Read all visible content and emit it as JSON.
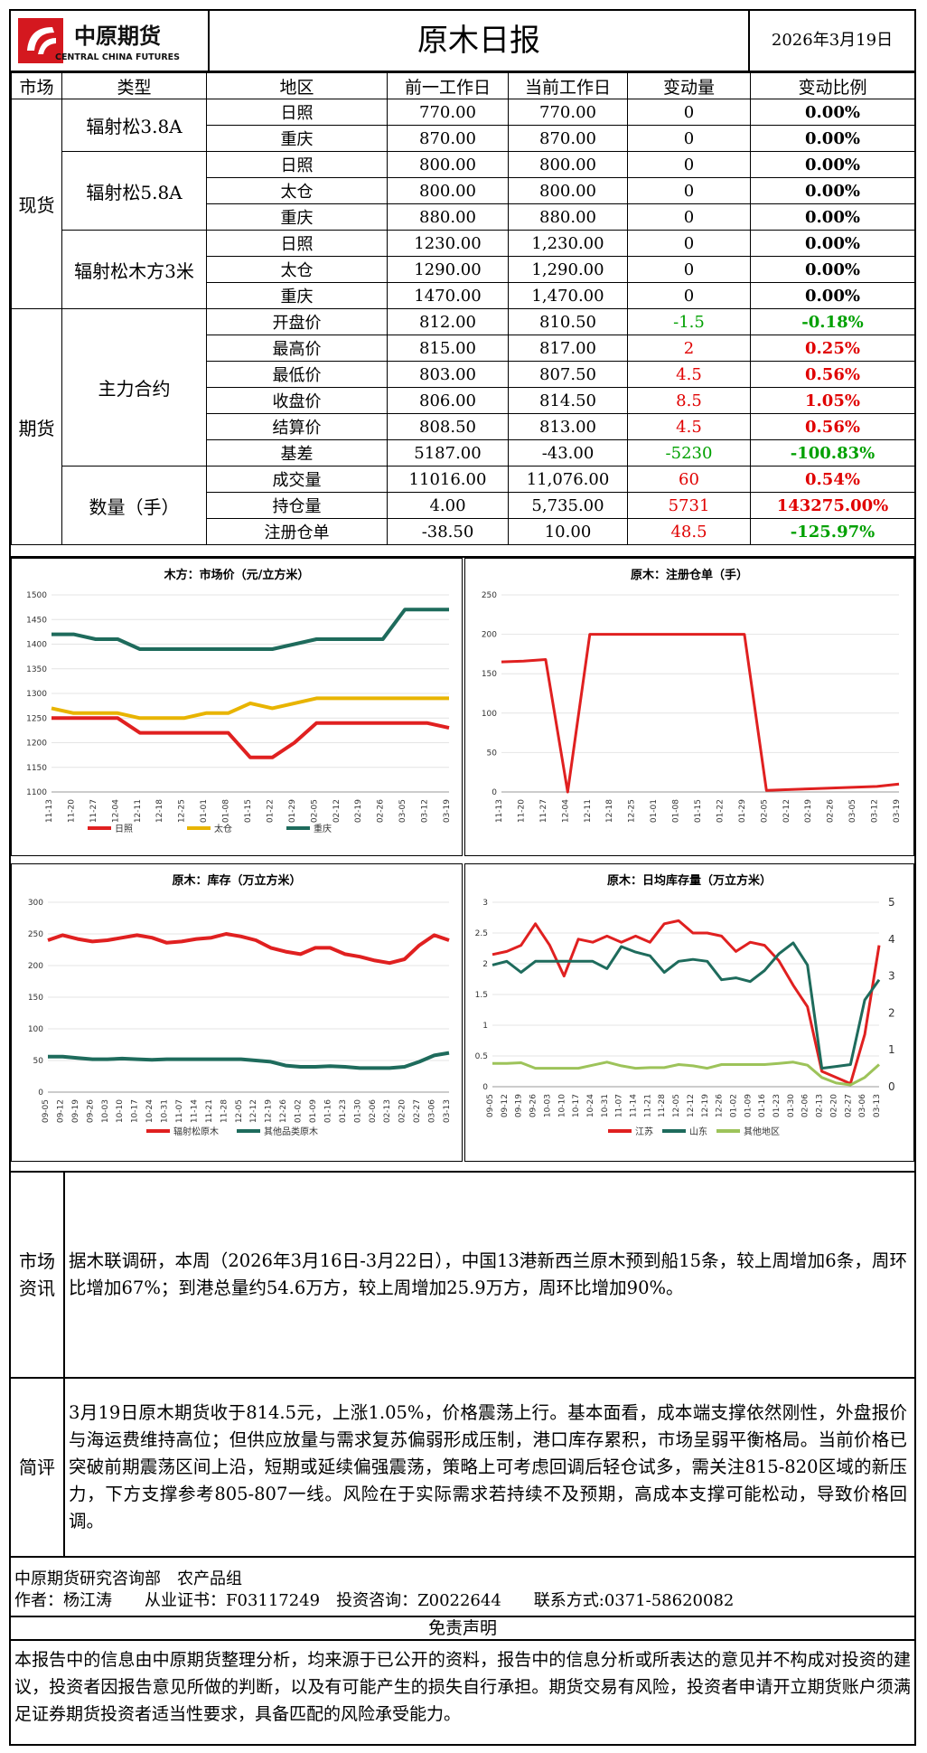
{
  "header": {
    "logo_cn": "中原期货",
    "logo_en": "CENTRAL CHINA FUTURES",
    "title": "原木日报",
    "date": "2026年3月19日",
    "brand_color": "#d4181f"
  },
  "table": {
    "headers": [
      "市场",
      "类型",
      "地区",
      "前一工作日",
      "当前工作日",
      "变动量",
      "变动比例"
    ],
    "spot_label": "现货",
    "futures_label": "期货",
    "groups": {
      "g1": "辐射松3.8A",
      "g2": "辐射松5.8A",
      "g3": "辐射松木方3米",
      "g4": "主力合约",
      "g5": "数量（手）"
    },
    "rows": [
      {
        "region": "日照",
        "prev": "770.00",
        "curr": "770.00",
        "chg": "0",
        "pct": "0.00%",
        "sign": ""
      },
      {
        "region": "重庆",
        "prev": "870.00",
        "curr": "870.00",
        "chg": "0",
        "pct": "0.00%",
        "sign": ""
      },
      {
        "region": "日照",
        "prev": "800.00",
        "curr": "800.00",
        "chg": "0",
        "pct": "0.00%",
        "sign": ""
      },
      {
        "region": "太仓",
        "prev": "800.00",
        "curr": "800.00",
        "chg": "0",
        "pct": "0.00%",
        "sign": ""
      },
      {
        "region": "重庆",
        "prev": "880.00",
        "curr": "880.00",
        "chg": "0",
        "pct": "0.00%",
        "sign": ""
      },
      {
        "region": "日照",
        "prev": "1230.00",
        "curr": "1,230.00",
        "chg": "0",
        "pct": "0.00%",
        "sign": ""
      },
      {
        "region": "太仓",
        "prev": "1290.00",
        "curr": "1,290.00",
        "chg": "0",
        "pct": "0.00%",
        "sign": ""
      },
      {
        "region": "重庆",
        "prev": "1470.00",
        "curr": "1,470.00",
        "chg": "0",
        "pct": "0.00%",
        "sign": ""
      },
      {
        "region": "开盘价",
        "prev": "812.00",
        "curr": "810.50",
        "chg": "-1.5",
        "pct": "-0.18%",
        "sign": "neg"
      },
      {
        "region": "最高价",
        "prev": "815.00",
        "curr": "817.00",
        "chg": "2",
        "pct": "0.25%",
        "sign": "pos"
      },
      {
        "region": "最低价",
        "prev": "803.00",
        "curr": "807.50",
        "chg": "4.5",
        "pct": "0.56%",
        "sign": "pos"
      },
      {
        "region": "收盘价",
        "prev": "806.00",
        "curr": "814.50",
        "chg": "8.5",
        "pct": "1.05%",
        "sign": "pos"
      },
      {
        "region": "结算价",
        "prev": "808.50",
        "curr": "813.00",
        "chg": "4.5",
        "pct": "0.56%",
        "sign": "pos"
      },
      {
        "region": "基差",
        "prev": "5187.00",
        "curr": "-43.00",
        "chg": "-5230",
        "pct": "-100.83%",
        "sign": "neg"
      },
      {
        "region": "成交量",
        "prev": "11016.00",
        "curr": "11,076.00",
        "chg": "60",
        "pct": "0.54%",
        "sign": "pos"
      },
      {
        "region": "持仓量",
        "prev": "4.00",
        "curr": "5,735.00",
        "chg": "5731",
        "pct": "143275.00%",
        "sign": "pos"
      },
      {
        "region": "注册仓单",
        "prev": "-38.50",
        "curr": "10.00",
        "chg": "48.5",
        "pct": "-125.97%",
        "sign": "mix"
      }
    ]
  },
  "chart_data": [
    {
      "type": "line",
      "title": "木方：市场价（元/立方米）",
      "x": [
        "11-13",
        "11-20",
        "11-27",
        "12-04",
        "12-11",
        "12-18",
        "12-25",
        "01-01",
        "01-08",
        "01-15",
        "01-22",
        "01-29",
        "02-05",
        "02-12",
        "02-19",
        "02-26",
        "03-05",
        "03-12",
        "03-19"
      ],
      "ylim": [
        1100,
        1500
      ],
      "yticks": [
        1100,
        1150,
        1200,
        1250,
        1300,
        1350,
        1400,
        1450,
        1500
      ],
      "series": [
        {
          "name": "日照",
          "color": "#e02020",
          "values": [
            1250,
            1250,
            1250,
            1250,
            1220,
            1220,
            1220,
            1220,
            1220,
            1170,
            1170,
            1200,
            1240,
            1240,
            1240,
            1240,
            1240,
            1240,
            1230
          ]
        },
        {
          "name": "太仓",
          "color": "#e8b400",
          "values": [
            1270,
            1260,
            1260,
            1260,
            1250,
            1250,
            1250,
            1260,
            1260,
            1280,
            1270,
            1280,
            1290,
            1290,
            1290,
            1290,
            1290,
            1290,
            1290
          ]
        },
        {
          "name": "重庆",
          "color": "#1e6b5c",
          "values": [
            1420,
            1420,
            1410,
            1410,
            1390,
            1390,
            1390,
            1390,
            1390,
            1390,
            1390,
            1400,
            1410,
            1410,
            1410,
            1410,
            1470,
            1470,
            1470
          ]
        }
      ]
    },
    {
      "type": "line",
      "title": "原木：注册仓单（手）",
      "x": [
        "11-13",
        "11-20",
        "11-27",
        "12-04",
        "12-11",
        "12-18",
        "12-25",
        "01-01",
        "01-08",
        "01-15",
        "01-22",
        "01-29",
        "02-05",
        "02-12",
        "02-19",
        "02-26",
        "03-05",
        "03-12",
        "03-19"
      ],
      "ylim": [
        0,
        250
      ],
      "yticks": [
        0,
        50,
        100,
        150,
        200,
        250
      ],
      "series": [
        {
          "name": "",
          "color": "#e02020",
          "values": [
            165,
            166,
            168,
            0,
            200,
            200,
            200,
            200,
            200,
            200,
            200,
            200,
            2,
            3,
            4,
            5,
            6,
            7,
            10
          ]
        }
      ]
    },
    {
      "type": "line",
      "title": "原木：库存（万立方米）",
      "x": [
        "09-05",
        "09-12",
        "09-19",
        "09-26",
        "10-03",
        "10-10",
        "10-17",
        "10-24",
        "10-31",
        "11-07",
        "11-14",
        "11-21",
        "11-28",
        "12-05",
        "12-12",
        "12-19",
        "12-26",
        "01-02",
        "01-09",
        "01-16",
        "01-23",
        "01-30",
        "02-06",
        "02-13",
        "02-20",
        "02-27",
        "03-06",
        "03-13"
      ],
      "ylim": [
        0,
        300
      ],
      "yticks": [
        0,
        50,
        100,
        150,
        200,
        250,
        300
      ],
      "series": [
        {
          "name": "辐射松原木",
          "color": "#e02020",
          "values": [
            240,
            248,
            242,
            238,
            240,
            244,
            248,
            244,
            236,
            238,
            242,
            244,
            250,
            246,
            240,
            228,
            222,
            218,
            228,
            228,
            218,
            214,
            208,
            204,
            210,
            232,
            248,
            240
          ]
        },
        {
          "name": "其他品类原木",
          "color": "#1e6b5c",
          "values": [
            56,
            56,
            54,
            52,
            52,
            53,
            52,
            51,
            52,
            52,
            52,
            52,
            52,
            52,
            50,
            48,
            42,
            40,
            40,
            41,
            40,
            38,
            38,
            38,
            40,
            48,
            58,
            62
          ]
        }
      ]
    },
    {
      "type": "line",
      "title": "原木：日均库存量（万立方米）",
      "x": [
        "09-05",
        "09-12",
        "09-19",
        "09-26",
        "10-03",
        "10-10",
        "10-17",
        "10-24",
        "10-31",
        "11-07",
        "11-14",
        "11-21",
        "11-28",
        "12-05",
        "12-12",
        "12-19",
        "12-26",
        "01-02",
        "01-09",
        "01-16",
        "01-23",
        "01-30",
        "02-06",
        "02-13",
        "02-20",
        "02-27",
        "03-06",
        "03-13"
      ],
      "ylim": [
        0,
        3
      ],
      "yticks": [
        0,
        0.5,
        1,
        1.5,
        2,
        2.5,
        3
      ],
      "ylim_right": [
        0,
        5
      ],
      "yticks_right": [
        0,
        1,
        2,
        3,
        4,
        5
      ],
      "series": [
        {
          "name": "江苏",
          "color": "#e02020",
          "axis": "left",
          "values": [
            2.15,
            2.2,
            2.3,
            2.65,
            2.3,
            1.8,
            2.4,
            2.35,
            2.45,
            2.35,
            2.45,
            2.35,
            2.65,
            2.7,
            2.5,
            2.5,
            2.45,
            2.2,
            2.35,
            2.3,
            2.05,
            1.65,
            1.3,
            0.25,
            0.15,
            0.05,
            0.85,
            2.3
          ]
        },
        {
          "name": "山东",
          "color": "#1e6b5c",
          "axis": "right",
          "values": [
            3.3,
            3.4,
            3.1,
            3.4,
            3.4,
            3.4,
            3.4,
            3.4,
            3.2,
            3.8,
            3.65,
            3.55,
            3.1,
            3.4,
            3.45,
            3.4,
            2.9,
            2.95,
            2.85,
            3.15,
            3.6,
            3.9,
            3.3,
            0.5,
            0.55,
            0.6,
            2.35,
            2.9
          ]
        },
        {
          "name": "其他地区",
          "color": "#9dc35a",
          "axis": "left",
          "values": [
            0.38,
            0.38,
            0.39,
            0.3,
            0.3,
            0.3,
            0.3,
            0.35,
            0.4,
            0.34,
            0.3,
            0.31,
            0.31,
            0.36,
            0.34,
            0.3,
            0.36,
            0.36,
            0.36,
            0.36,
            0.38,
            0.4,
            0.35,
            0.15,
            0.06,
            0.03,
            0.15,
            0.36
          ]
        }
      ]
    }
  ],
  "info": {
    "market_label": "市场资讯",
    "market_text": "据木联调研，本周（2026年3月16日-3月22日），中国13港新西兰原木预到船15条，较上周增加6条，周环比增加67%；到港总量约54.6万方，较上周增加25.9万方，周环比增加90%。",
    "comment_label": "简评",
    "comment_text": "3月19日原木期货收于814.5元，上涨1.05%，价格震荡上行。基本面看，成本端支撑依然刚性，外盘报价与海运费维持高位；但供应放量与需求复苏偏弱形成压制，港口库存累积，市场呈弱平衡格局。当前价格已突破前期震荡区间上沿，短期或延续偏强震荡，策略上可考虑回调后轻仓试多，需关注815-820区域的新压力，下方支撑参考805-807一线。风险在于实际需求若持续不及预期，高成本支撑可能松动，导致价格回调。"
  },
  "footer": {
    "dept": "中原期货研究咨询部　农产品组",
    "author": "作者：杨江涛　　从业证书：F03117249　投资咨询：Z0022644　　联系方式:0371-58620082",
    "disclaimer_title": "免责声明",
    "disclaimer_text": "本报告中的信息由中原期货整理分析，均来源于已公开的资料，报告中的信息分析或所表达的意见并不构成对投资的建议，投资者因报告意见所做的判断，以及有可能产生的损失自行承担。期货交易有风险，投资者申请开立期货账户须满足证券期货投资者适当性要求，具备匹配的风险承受能力。"
  }
}
